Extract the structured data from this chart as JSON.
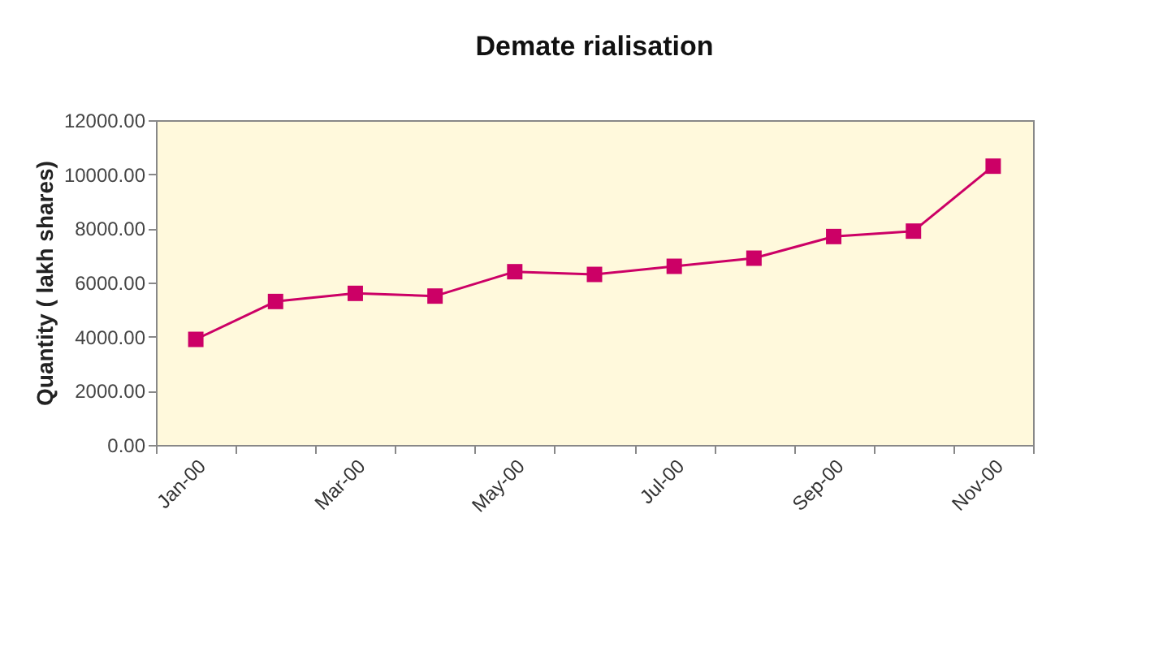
{
  "chart_data": {
    "type": "line",
    "title": "Demate rialisation",
    "ylabel": "Quantity ( lakh shares)",
    "categories": [
      "Jan-00",
      null,
      "Mar-00",
      null,
      "May-00",
      null,
      "Jul-00",
      null,
      "Sep-00",
      null,
      "Nov-00"
    ],
    "series": [
      {
        "color": "#cc0066",
        "values": [
          3900,
          5300,
          5600,
          5500,
          6400,
          6300,
          6600,
          6900,
          7700,
          7900,
          10300
        ]
      }
    ],
    "ylim": [
      0,
      12000
    ],
    "yticks": [
      {
        "value": 0,
        "label": "0.00"
      },
      {
        "value": 2000,
        "label": "2000.00"
      },
      {
        "value": 4000,
        "label": "4000.00"
      },
      {
        "value": 6000,
        "label": "6000.00"
      },
      {
        "value": 8000,
        "label": "8000.00"
      },
      {
        "value": 10000,
        "label": "10000.00"
      },
      {
        "value": 12000,
        "label": "12000.00"
      }
    ],
    "grid": false,
    "marker": "square",
    "line_style": "solid"
  }
}
